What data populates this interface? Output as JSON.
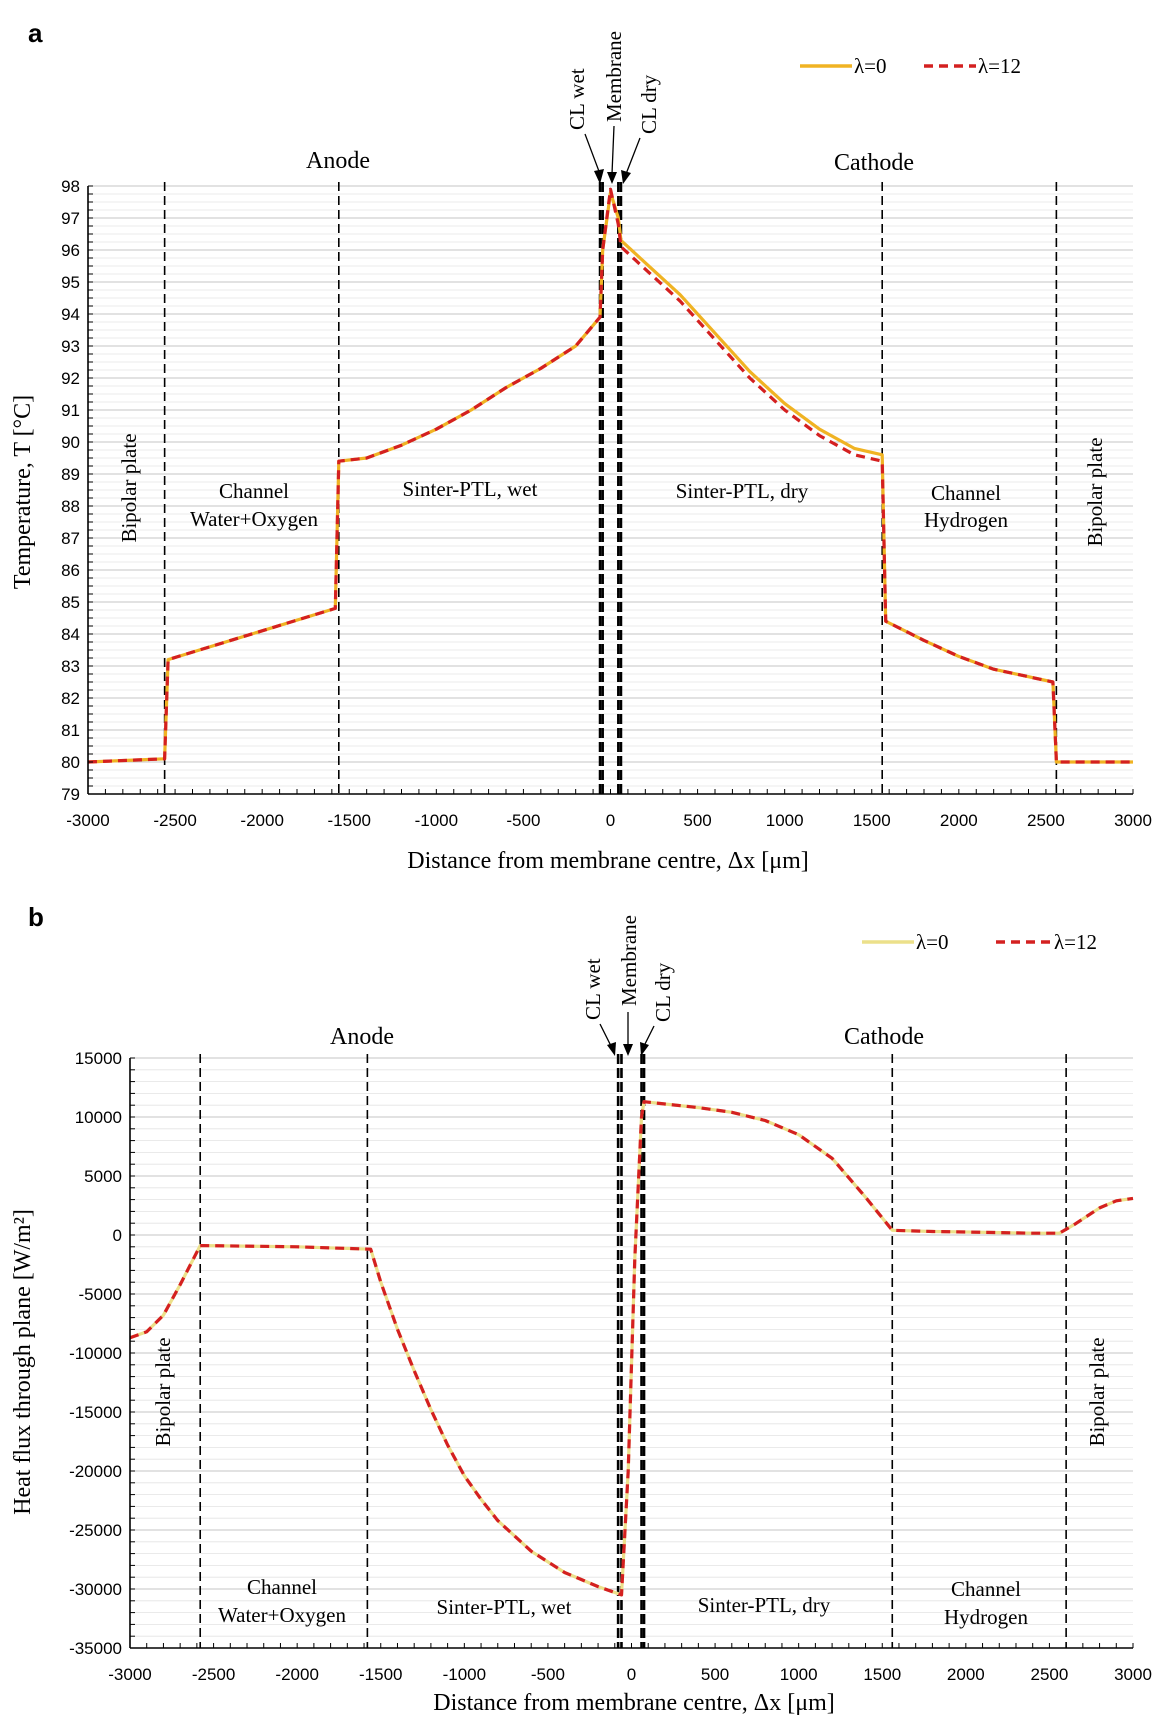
{
  "chart_data": [
    {
      "panel": "a",
      "type": "line",
      "xlabel": "Distance from membrane centre, Δx [μm]",
      "ylabel": "Temperature, T [°C]",
      "xlim": [
        -3000,
        3000
      ],
      "ylim": [
        79,
        98
      ],
      "xticks": [
        "-3000",
        "-2500",
        "-2000",
        "-1500",
        "-1000",
        "-500",
        "0",
        "500",
        "1000",
        "1500",
        "2000",
        "2500",
        "3000"
      ],
      "yticks": [
        "79",
        "80",
        "81",
        "82",
        "83",
        "84",
        "85",
        "86",
        "87",
        "88",
        "89",
        "90",
        "91",
        "92",
        "93",
        "94",
        "95",
        "96",
        "97",
        "98"
      ],
      "grid": true,
      "legend": "top-right",
      "zones": {
        "anode": "Anode",
        "cathode": "Cathode"
      },
      "top_labels": {
        "cl_wet": "CL wet",
        "membrane": "Membrane",
        "cl_dry": "CL dry"
      },
      "regions": {
        "bp_left": "Bipolar plate",
        "ch_left_1": "Channel",
        "ch_left_2": "Water+Oxygen",
        "ptl_left": "Sinter-PTL, wet",
        "ptl_right": "Sinter-PTL, dry",
        "ch_right_1": "Channel",
        "ch_right_2": "Hydrogen",
        "bp_right": "Bipolar plate"
      },
      "boundaries": [
        -2560,
        -1560,
        -60,
        -45,
        45,
        60,
        1560,
        2560
      ],
      "series": [
        {
          "name": "λ=0",
          "color": "#f0b323",
          "style": "solid",
          "x": [
            -3000,
            -2560,
            -2540,
            -1580,
            -1560,
            -1400,
            -1200,
            -1000,
            -800,
            -600,
            -400,
            -200,
            -60,
            -45,
            0,
            45,
            60,
            200,
            400,
            600,
            800,
            1000,
            1200,
            1400,
            1560,
            1580,
            1800,
            2000,
            2200,
            2540,
            2560,
            3000
          ],
          "y": [
            80.0,
            80.1,
            83.2,
            84.8,
            89.4,
            89.5,
            89.9,
            90.4,
            91.0,
            91.7,
            92.3,
            93.0,
            93.9,
            96.0,
            97.8,
            97.0,
            96.3,
            95.6,
            94.6,
            93.4,
            92.2,
            91.2,
            90.4,
            89.8,
            89.6,
            84.4,
            83.8,
            83.3,
            82.9,
            82.5,
            80.0,
            80.0
          ]
        },
        {
          "name": "λ=12",
          "color": "#d42020",
          "style": "dashed",
          "x": [
            -3000,
            -2560,
            -2540,
            -1580,
            -1560,
            -1400,
            -1200,
            -1000,
            -800,
            -600,
            -400,
            -200,
            -60,
            -45,
            0,
            45,
            60,
            200,
            400,
            600,
            800,
            1000,
            1200,
            1400,
            1560,
            1580,
            1800,
            2000,
            2200,
            2540,
            2560,
            3000
          ],
          "y": [
            80.0,
            80.1,
            83.2,
            84.8,
            89.4,
            89.5,
            89.9,
            90.4,
            91.0,
            91.7,
            92.3,
            93.0,
            93.9,
            96.0,
            97.9,
            96.8,
            96.1,
            95.4,
            94.4,
            93.2,
            92.0,
            91.0,
            90.2,
            89.6,
            89.4,
            84.4,
            83.8,
            83.3,
            82.9,
            82.5,
            80.0,
            80.0
          ]
        }
      ]
    },
    {
      "panel": "b",
      "type": "line",
      "xlabel": "Distance from membrane centre, Δx [μm]",
      "ylabel": "Heat flux through plane [W/m²]",
      "xlim": [
        -3000,
        3000
      ],
      "ylim": [
        -35000,
        15000
      ],
      "xticks": [
        "-3000",
        "-2500",
        "-2000",
        "-1500",
        "-1000",
        "-500",
        "0",
        "500",
        "1000",
        "1500",
        "2000",
        "2500",
        "3000"
      ],
      "yticks": [
        "-35000",
        "-30000",
        "-25000",
        "-20000",
        "-15000",
        "-10000",
        "-5000",
        "0",
        "5000",
        "10000",
        "15000"
      ],
      "grid": true,
      "legend": "top-right",
      "zones": {
        "anode": "Anode",
        "cathode": "Cathode"
      },
      "top_labels": {
        "cl_wet": "CL wet",
        "membrane": "Membrane",
        "cl_dry": "CL dry"
      },
      "regions": {
        "bp_left": "Bipolar plate",
        "ch_left_1": "Channel",
        "ch_left_2": "Water+Oxygen",
        "ptl_left": "Sinter-PTL, wet",
        "ptl_right": "Sinter-PTL, dry",
        "ch_right_1": "Channel",
        "ch_right_2": "Hydrogen",
        "bp_right": "Bipolar plate"
      },
      "boundaries": [
        -2580,
        -1580,
        -80,
        -60,
        60,
        75,
        1560,
        2600
      ],
      "series": [
        {
          "name": "λ=0",
          "color": "#ece08a",
          "style": "solid",
          "x": [
            -3000,
            -2900,
            -2800,
            -2700,
            -2580,
            -2560,
            -2000,
            -1560,
            -1500,
            -1400,
            -1300,
            -1200,
            -1100,
            -1000,
            -900,
            -800,
            -600,
            -400,
            -200,
            -60,
            -20,
            20,
            60,
            75,
            200,
            400,
            600,
            800,
            1000,
            1200,
            1400,
            1560,
            1800,
            2000,
            2200,
            2400,
            2560,
            2650,
            2800,
            2900,
            3000
          ],
          "y": [
            -8700,
            -8200,
            -6800,
            -4200,
            -900,
            -900,
            -1000,
            -1200,
            -4000,
            -8000,
            -11500,
            -14800,
            -17800,
            -20400,
            -22400,
            -24200,
            -26800,
            -28600,
            -29800,
            -30500,
            -20000,
            -2000,
            10000,
            11300,
            11100,
            10800,
            10400,
            9700,
            8500,
            6500,
            3200,
            400,
            300,
            250,
            200,
            150,
            150,
            900,
            2300,
            2900,
            3100
          ]
        },
        {
          "name": "λ=12",
          "color": "#d42020",
          "style": "dashed",
          "x": [
            -3000,
            -2900,
            -2800,
            -2700,
            -2580,
            -2560,
            -2000,
            -1560,
            -1500,
            -1400,
            -1300,
            -1200,
            -1100,
            -1000,
            -900,
            -800,
            -600,
            -400,
            -200,
            -60,
            -20,
            20,
            60,
            75,
            200,
            400,
            600,
            800,
            1000,
            1200,
            1400,
            1560,
            1800,
            2000,
            2200,
            2400,
            2560,
            2650,
            2800,
            2900,
            3000
          ],
          "y": [
            -8700,
            -8200,
            -6800,
            -4200,
            -900,
            -900,
            -1000,
            -1200,
            -4000,
            -8000,
            -11500,
            -14800,
            -17800,
            -20400,
            -22400,
            -24200,
            -26800,
            -28600,
            -29800,
            -30500,
            -20000,
            -2000,
            10000,
            11300,
            11100,
            10800,
            10400,
            9700,
            8500,
            6500,
            3200,
            400,
            300,
            250,
            200,
            150,
            150,
            900,
            2300,
            2900,
            3100
          ]
        }
      ]
    }
  ]
}
